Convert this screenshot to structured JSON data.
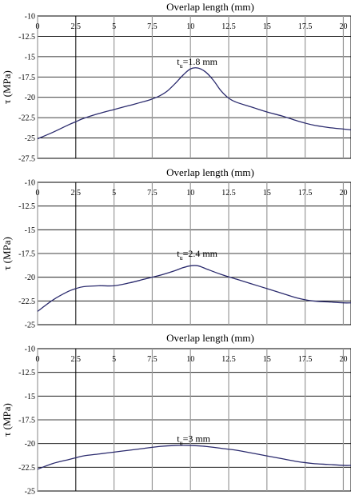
{
  "colors": {
    "line": "#2b2b6e",
    "grid": "#9a9a9a",
    "axis": "#000000",
    "background": "#ffffff"
  },
  "chart_data": [
    {
      "type": "line",
      "title": "Overlap length (mm)",
      "xlabel": "Overlap length (mm)",
      "ylabel": "τ (MPa)",
      "xlim": [
        0,
        20.5
      ],
      "ylim": [
        -27.5,
        -10
      ],
      "xticks": [
        "0",
        "2.5",
        "5",
        "7.5",
        "10",
        "12.5",
        "15",
        "17.5",
        "20"
      ],
      "yticks": [
        "-10",
        "-12.5",
        "-15",
        "-17.5",
        "-20",
        "-22.5",
        "-25",
        "-27.5"
      ],
      "grid": true,
      "annotation": {
        "main": "t",
        "sub": "u",
        "rest": "=1.8 mm",
        "x": 10,
        "y": -15.6
      },
      "series": [
        {
          "x": [
            0,
            1,
            2,
            2.5,
            3,
            4,
            5,
            6,
            7,
            7.5,
            8,
            8.5,
            9,
            9.5,
            10,
            10.5,
            11,
            11.5,
            12,
            12.5,
            13,
            14,
            15,
            16,
            17,
            18,
            19,
            20,
            20.5
          ],
          "values": [
            -25.1,
            -24.3,
            -23.4,
            -23.0,
            -22.6,
            -22.0,
            -21.5,
            -21.0,
            -20.5,
            -20.2,
            -19.8,
            -19.2,
            -18.3,
            -17.3,
            -16.5,
            -16.4,
            -16.9,
            -17.9,
            -19.2,
            -20.1,
            -20.6,
            -21.2,
            -21.8,
            -22.3,
            -22.9,
            -23.4,
            -23.7,
            -23.9,
            -24.0
          ]
        }
      ]
    },
    {
      "type": "line",
      "title": "Overlap length (mm)",
      "xlabel": "Overlap length (mm)",
      "ylabel": "τ (MPa)",
      "xlim": [
        0,
        20.5
      ],
      "ylim": [
        -25,
        -10
      ],
      "xticks": [
        "0",
        "2.5",
        "5",
        "7.5",
        "10",
        "12.5",
        "15",
        "17.5",
        "20"
      ],
      "yticks": [
        "-10",
        "-12.5",
        "-15",
        "-17.5",
        "-20",
        "-22.5",
        "-25"
      ],
      "grid": true,
      "annotation": {
        "main": "t",
        "sub": "u",
        "rest": "=2.4 mm",
        "x": 10,
        "y": -17.5
      },
      "series": [
        {
          "x": [
            0,
            1,
            2,
            2.5,
            3,
            4,
            5,
            6,
            7,
            8,
            9,
            9.5,
            10,
            10.5,
            11,
            12,
            13,
            14,
            15,
            16,
            17,
            18,
            19,
            20,
            20.5
          ],
          "values": [
            -23.6,
            -22.4,
            -21.5,
            -21.2,
            -21.0,
            -20.9,
            -20.9,
            -20.6,
            -20.2,
            -19.8,
            -19.3,
            -19.0,
            -18.8,
            -18.8,
            -19.1,
            -19.7,
            -20.2,
            -20.7,
            -21.2,
            -21.7,
            -22.2,
            -22.5,
            -22.6,
            -22.7,
            -22.7
          ]
        }
      ]
    },
    {
      "type": "line",
      "title": "Overlap length (mm)",
      "xlabel": "Overlap length (mm)",
      "ylabel": "τ (MPa)",
      "xlim": [
        0,
        20.5
      ],
      "ylim": [
        -25,
        -10
      ],
      "xticks": [
        "0",
        "2.5",
        "5",
        "7.5",
        "10",
        "12.5",
        "15",
        "17.5",
        "20"
      ],
      "yticks": [
        "-10",
        "-12.5",
        "-15",
        "-17.5",
        "-20",
        "-22.5",
        "-25"
      ],
      "grid": true,
      "annotation": {
        "main": "t",
        "sub": "u",
        "rest": "=3 mm",
        "x": 10,
        "y": -19.5
      },
      "series": [
        {
          "x": [
            0,
            1,
            2,
            2.5,
            3,
            4,
            5,
            6,
            7,
            8,
            9,
            10,
            11,
            12,
            13,
            14,
            15,
            16,
            17,
            18,
            19,
            20,
            20.5
          ],
          "values": [
            -22.7,
            -22.1,
            -21.7,
            -21.5,
            -21.3,
            -21.1,
            -20.9,
            -20.7,
            -20.5,
            -20.3,
            -20.2,
            -20.2,
            -20.3,
            -20.5,
            -20.7,
            -21.0,
            -21.3,
            -21.6,
            -21.9,
            -22.1,
            -22.2,
            -22.3,
            -22.3
          ]
        }
      ]
    }
  ]
}
